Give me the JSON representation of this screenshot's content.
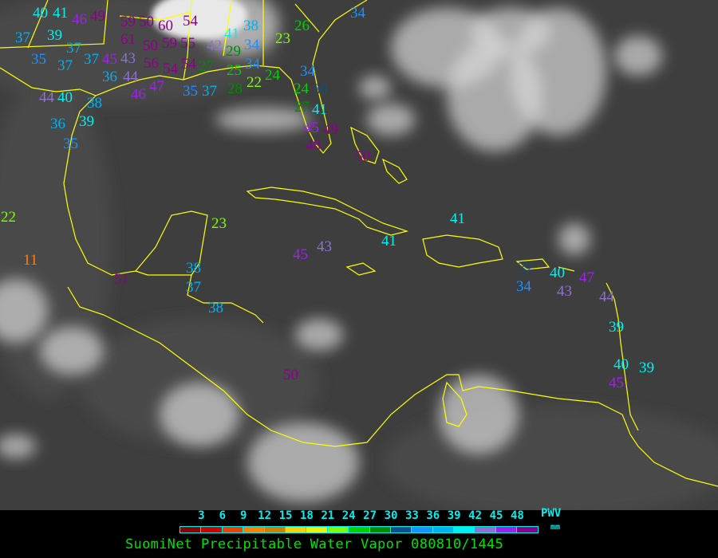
{
  "title": "SuomiNet Precipitable Water Vapor 080810/1445",
  "legend": {
    "unit_label": "PWV",
    "unit": "mm",
    "ticks": [
      "3",
      "6",
      "9",
      "12",
      "15",
      "18",
      "21",
      "24",
      "27",
      "30",
      "33",
      "36",
      "39",
      "42",
      "45",
      "48"
    ],
    "colors": [
      "#8b0000",
      "#d00000",
      "#f04000",
      "#ff8000",
      "#d08000",
      "#ffd000",
      "#f0f000",
      "#80ff00",
      "#00d000",
      "#008b00",
      "#104e8b",
      "#1e90ff",
      "#00b0f0",
      "#00f0f0",
      "#9070d0",
      "#a020f0",
      "#8b008b"
    ]
  },
  "map": {
    "coastline_color": "#ffff00",
    "station_values": [
      40,
      41,
      46,
      49,
      59,
      50,
      61,
      60,
      54,
      37,
      39,
      37,
      35,
      37,
      37,
      45,
      43,
      44,
      50,
      59,
      55,
      56,
      54,
      54,
      36,
      46,
      47,
      44,
      40,
      38,
      35,
      37,
      36,
      39,
      35,
      34,
      26,
      23,
      41,
      38,
      34,
      42,
      29,
      34,
      25,
      27,
      28,
      22,
      24,
      34,
      24,
      30,
      27,
      41,
      45,
      49,
      48,
      50,
      22,
      11,
      51,
      23,
      45,
      43,
      41,
      41,
      38,
      37,
      38,
      50,
      32,
      34,
      40,
      43,
      47,
      44,
      39,
      40,
      39,
      45
    ]
  }
}
